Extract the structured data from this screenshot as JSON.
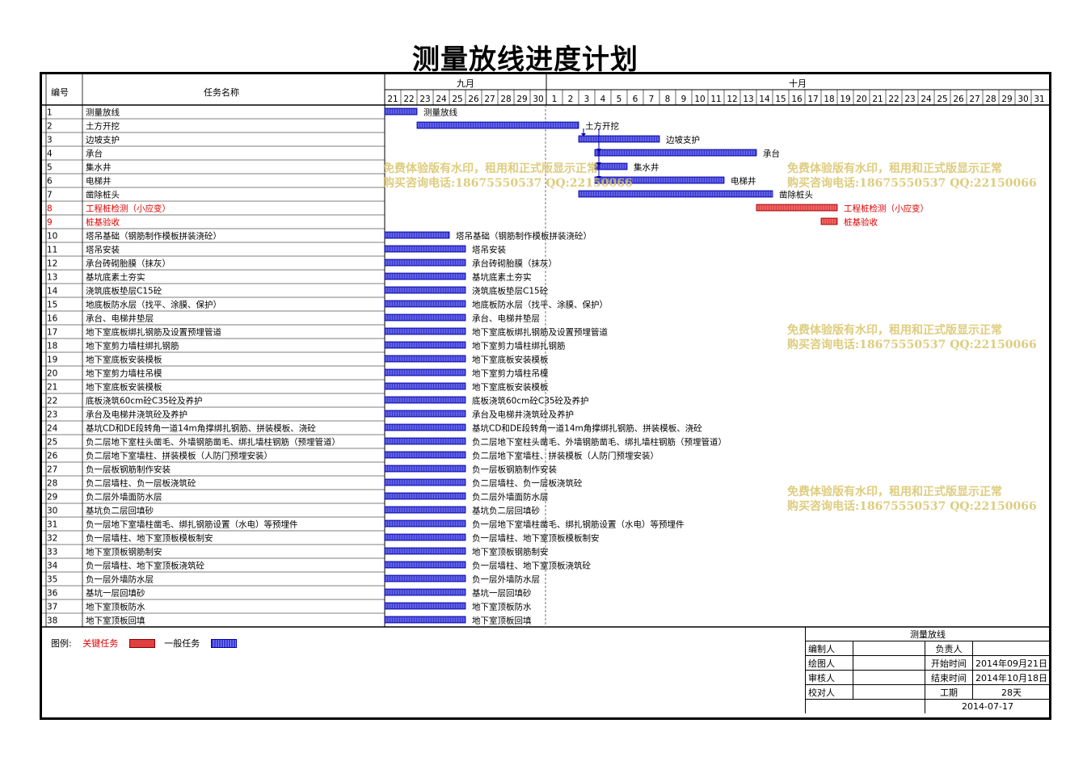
{
  "title": "测量放线进度计划",
  "header": {
    "id_col": "编号",
    "name_col": "任务名称",
    "months": [
      "九月",
      "十月"
    ]
  },
  "days": [
    "21",
    "22",
    "23",
    "24",
    "25",
    "26",
    "27",
    "28",
    "29",
    "30",
    "1",
    "2",
    "3",
    "4",
    "5",
    "6",
    "7",
    "8",
    "9",
    "10",
    "11",
    "12",
    "13",
    "14",
    "15",
    "16",
    "17",
    "18",
    "19",
    "20",
    "21",
    "22",
    "23",
    "24",
    "25",
    "26",
    "27",
    "28",
    "29",
    "30",
    "31"
  ],
  "colors": {
    "critical": "#e04040",
    "normal": "#3a3ad0",
    "critical_text": "#e00000",
    "watermark": "#d9c468"
  },
  "chart_data": {
    "type": "gantt",
    "time_unit": "day",
    "start_label": "9月21日",
    "tasks": [
      {
        "id": "1",
        "name": "测量放线",
        "start": 0,
        "duration": 2,
        "critical": false
      },
      {
        "id": "2",
        "name": "土方开挖",
        "start": 2,
        "duration": 10,
        "critical": false
      },
      {
        "id": "3",
        "name": "边坡支护",
        "start": 12,
        "duration": 5,
        "critical": false
      },
      {
        "id": "4",
        "name": "承台",
        "start": 13,
        "duration": 10,
        "critical": false
      },
      {
        "id": "5",
        "name": "集水井",
        "start": 13,
        "duration": 2,
        "critical": false
      },
      {
        "id": "6",
        "name": "电梯井",
        "start": 13,
        "duration": 8,
        "critical": false
      },
      {
        "id": "7",
        "name": "凿除桩头",
        "start": 12,
        "duration": 12,
        "critical": false
      },
      {
        "id": "8",
        "name": "工程桩检测（小应变）",
        "start": 23,
        "duration": 5,
        "critical": true
      },
      {
        "id": "9",
        "name": "桩基验收",
        "start": 27,
        "duration": 1,
        "critical": true
      },
      {
        "id": "10",
        "name": "塔吊基础（钢筋制作模板拼装浇砼）",
        "start": 0,
        "duration": 4,
        "critical": false
      },
      {
        "id": "11",
        "name": "塔吊安装",
        "start": 0,
        "duration": 5,
        "critical": false
      },
      {
        "id": "12",
        "name": "承台砖砌胎膜（抹灰）",
        "start": 0,
        "duration": 5,
        "critical": false
      },
      {
        "id": "13",
        "name": "基坑底素土夯实",
        "start": 0,
        "duration": 5,
        "critical": false
      },
      {
        "id": "14",
        "name": "浇筑底板垫层C15砼",
        "start": 0,
        "duration": 5,
        "critical": false
      },
      {
        "id": "15",
        "name": "地底板防水层（找平、涂膜、保护）",
        "start": 0,
        "duration": 5,
        "critical": false
      },
      {
        "id": "16",
        "name": "承台、电梯井垫层",
        "start": 0,
        "duration": 5,
        "critical": false
      },
      {
        "id": "17",
        "name": "地下室底板绑扎钢筋及设置预埋管道",
        "start": 0,
        "duration": 5,
        "critical": false
      },
      {
        "id": "18",
        "name": "地下室剪力墙柱绑扎钢筋",
        "start": 0,
        "duration": 5,
        "critical": false
      },
      {
        "id": "19",
        "name": "地下室底板安装模板",
        "start": 0,
        "duration": 5,
        "critical": false
      },
      {
        "id": "20",
        "name": "地下室剪力墙柱吊模",
        "start": 0,
        "duration": 5,
        "critical": false
      },
      {
        "id": "21",
        "name": "地下室底板安装模板",
        "start": 0,
        "duration": 5,
        "critical": false
      },
      {
        "id": "22",
        "name": "底板浇筑60cm砼C35砼及养护",
        "start": 0,
        "duration": 5,
        "critical": false
      },
      {
        "id": "23",
        "name": "承台及电梯井浇筑砼及养护",
        "start": 0,
        "duration": 5,
        "critical": false
      },
      {
        "id": "24",
        "name": "基坑CD和DE段转角一道14m角撑绑扎钢筋、拼装模板、浇砼",
        "start": 0,
        "duration": 5,
        "critical": false
      },
      {
        "id": "25",
        "name": "负二层地下室柱头凿毛、外墙钢筋凿毛、绑扎墙柱钢筋（预埋管道）",
        "start": 0,
        "duration": 5,
        "critical": false
      },
      {
        "id": "26",
        "name": "负二层地下室墙柱、拼装模板（人防门预埋安装）",
        "start": 0,
        "duration": 5,
        "critical": false
      },
      {
        "id": "27",
        "name": "负一层板钢筋制作安装",
        "start": 0,
        "duration": 5,
        "critical": false
      },
      {
        "id": "28",
        "name": "负二层墙柱、负一层板浇筑砼",
        "start": 0,
        "duration": 5,
        "critical": false
      },
      {
        "id": "29",
        "name": "负二层外墙面防水层",
        "start": 0,
        "duration": 5,
        "critical": false
      },
      {
        "id": "30",
        "name": "基坑负二层回填砂",
        "start": 0,
        "duration": 5,
        "critical": false
      },
      {
        "id": "31",
        "name": "负一层地下室墙柱凿毛、绑扎钢筋设置（水电）等预埋件",
        "start": 0,
        "duration": 5,
        "critical": false
      },
      {
        "id": "32",
        "name": "负一层墙柱、地下室顶板模板制安",
        "start": 0,
        "duration": 5,
        "critical": false
      },
      {
        "id": "33",
        "name": "地下室顶板钢筋制安",
        "start": 0,
        "duration": 5,
        "critical": false
      },
      {
        "id": "34",
        "name": "负一层墙柱、地下室顶板浇筑砼",
        "start": 0,
        "duration": 5,
        "critical": false
      },
      {
        "id": "35",
        "name": "负一层外墙防水层",
        "start": 0,
        "duration": 5,
        "critical": false
      },
      {
        "id": "36",
        "name": "基坑一层回填砂",
        "start": 0,
        "duration": 5,
        "critical": false
      },
      {
        "id": "37",
        "name": "地下室顶板防水",
        "start": 0,
        "duration": 5,
        "critical": false
      },
      {
        "id": "38",
        "name": "地下室顶板回填",
        "start": 0,
        "duration": 5,
        "critical": false
      }
    ]
  },
  "legend": {
    "label": "图例:",
    "critical": "关键任务",
    "normal": "一般任务"
  },
  "info": {
    "project": "测量放线",
    "compiler_label": "编制人",
    "compiler": "",
    "owner_label": "负责人",
    "owner": "",
    "drawer_label": "绘图人",
    "drawer": "",
    "start_label": "开始时间",
    "start": "2014年09月21日",
    "reviewer_label": "审核人",
    "reviewer": "",
    "end_label": "结束时间",
    "end": "2014年10月18日",
    "checker_label": "校对人",
    "checker": "",
    "duration_label": "工期",
    "duration": "28天",
    "date": "2014-07-17"
  },
  "watermark": {
    "line1": "免费体验版有水印，租用和正式版显示正常",
    "line2": "购买咨询电话:18675550537 QQ:22150066"
  }
}
